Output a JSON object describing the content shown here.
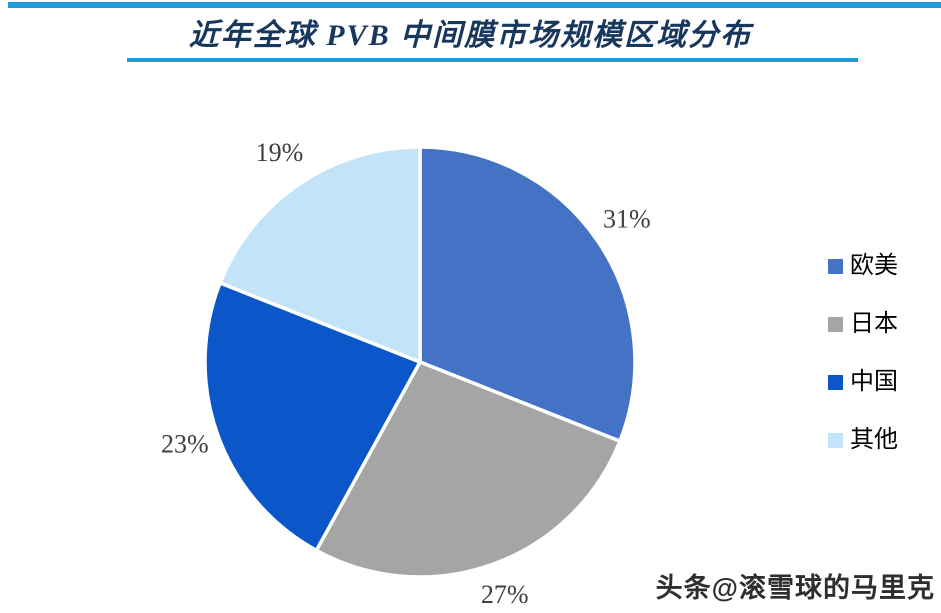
{
  "title": "近年全球 PVB 中间膜市场规模区域分布",
  "watermark": "头条@滚雪球的马里克",
  "colors": {
    "accent_line": "#1E9BD7",
    "title_text": "#17375D",
    "slice_label_text": "#3F3F3F"
  },
  "chart_data": {
    "type": "pie",
    "title": "近年全球 PVB 中间膜市场规模区域分布",
    "start_angle_deg": 0,
    "direction": "clockwise",
    "legend_position": "right",
    "unit": "%",
    "slices": [
      {
        "label": "欧美",
        "value": 31,
        "display": "31%",
        "color": "#4472C4"
      },
      {
        "label": "日本",
        "value": 27,
        "display": "27%",
        "color": "#A5A5A5"
      },
      {
        "label": "中国",
        "value": 23,
        "display": "23%",
        "color": "#0B57C9"
      },
      {
        "label": "其他",
        "value": 19,
        "display": "19%",
        "color": "#C3E3F8"
      }
    ]
  }
}
